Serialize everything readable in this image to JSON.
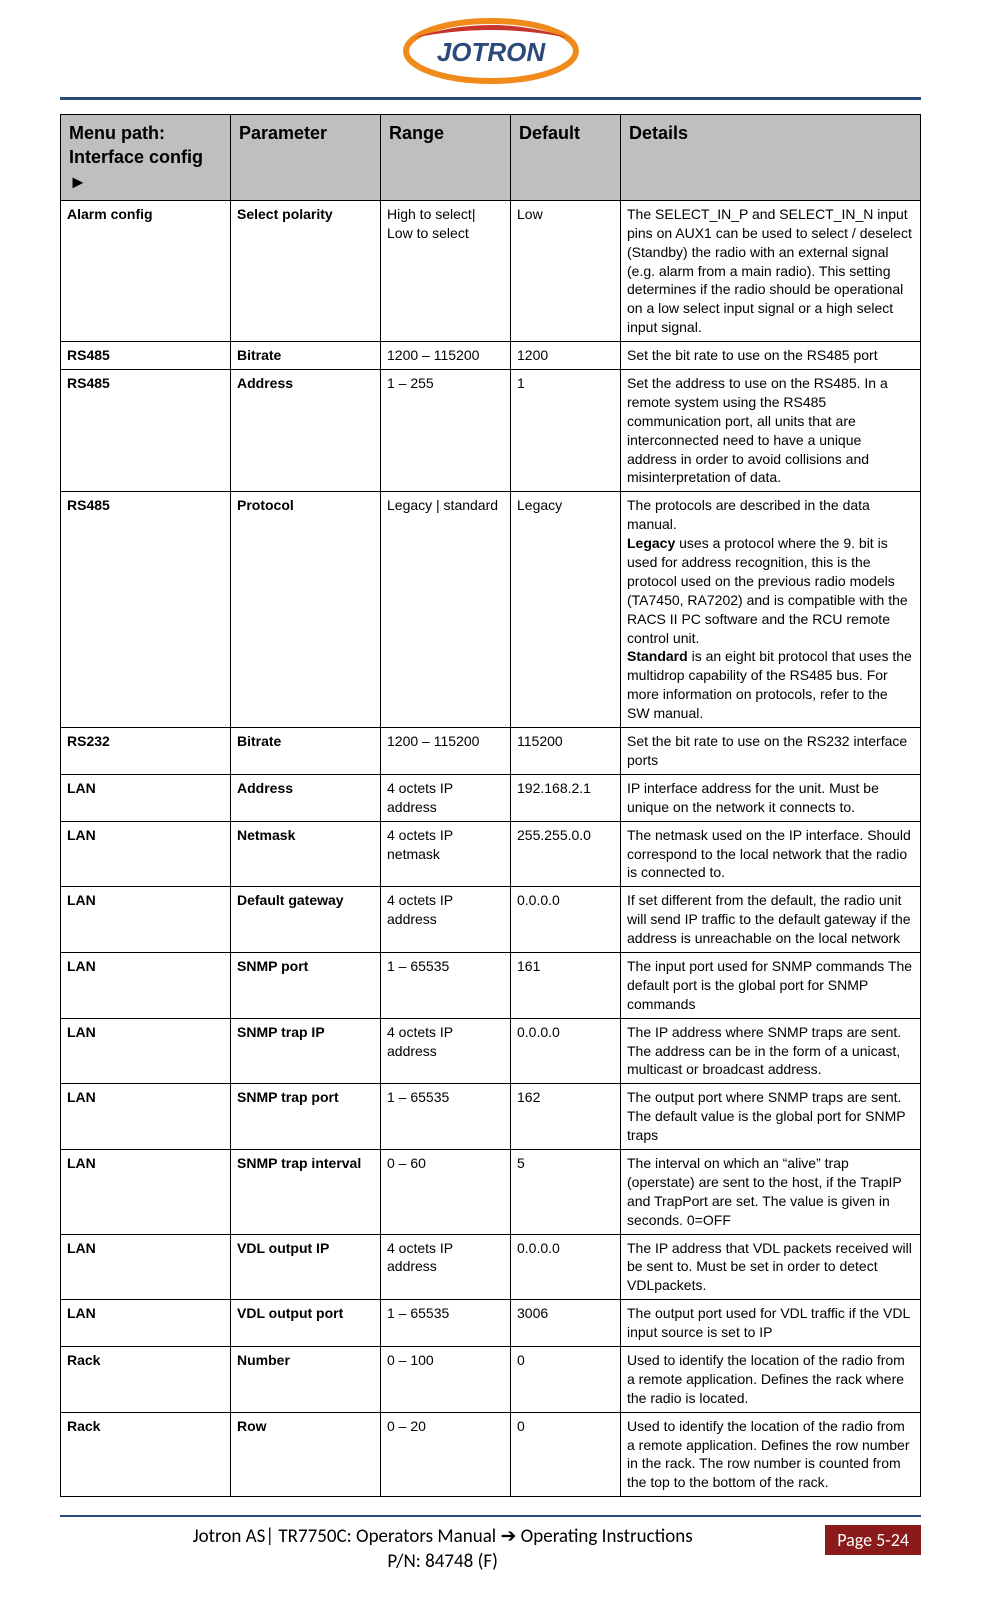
{
  "logo_text": "JOTRON",
  "logo_colors": {
    "ring": "#f08a1a",
    "top": "#c7342b",
    "text": "#2b4a7a"
  },
  "header": {
    "menu_path_line1": "Menu path:",
    "menu_path_line2": "Interface config ►",
    "parameter": "Parameter",
    "range": "Range",
    "default": "Default",
    "details": "Details"
  },
  "rows": [
    {
      "menu": "Alarm config",
      "param": "Select polarity",
      "range": "High to select| Low to select",
      "def": "Low",
      "details": "The SELECT_IN_P and SELECT_IN_N input pins on AUX1 can be used to select / deselect (Standby) the radio with an external signal (e.g. alarm from a main radio). This setting determines if the radio should be operational on a low select input signal or a high select input signal."
    },
    {
      "menu": "RS485",
      "param": "Bitrate",
      "range": "1200 – 115200",
      "def": "1200",
      "details": "Set the bit rate to use on the RS485 port"
    },
    {
      "menu": "RS485",
      "param": "Address",
      "range": "1 – 255",
      "def": "1",
      "details": "Set the address to use on the RS485. In a remote system using the RS485 communication port, all units that are interconnected need to have a unique address in order to avoid collisions and misinterpretation of data."
    },
    {
      "menu": "RS485",
      "param": "Protocol",
      "range": "Legacy | standard",
      "def": "Legacy",
      "details_html": "The protocols are described in the data manual.<br><b>Legacy</b> uses a protocol where the 9. bit is used for address recognition, this is the protocol used on the previous radio models (TA7450, RA7202) and is compatible with the RACS II PC software and the RCU remote control unit.<br><b>Standard</b> is an eight bit protocol that uses the multidrop capability of the RS485 bus. For more information on protocols, refer to the SW manual."
    },
    {
      "menu": "RS232",
      "param": "Bitrate",
      "range": "1200 – 115200",
      "def": "115200",
      "details": "Set the bit rate to use on the RS232 interface ports"
    },
    {
      "menu": "LAN",
      "param": "Address",
      "range": "4 octets IP address",
      "def": "192.168.2.1",
      "details": "IP interface address for the unit. Must be unique on the network it connects to."
    },
    {
      "menu": "LAN",
      "param": "Netmask",
      "range": "4 octets IP netmask",
      "def": "255.255.0.0",
      "details": "The netmask used on the IP interface. Should correspond to the local network that the radio is connected to."
    },
    {
      "menu": "LAN",
      "param": "Default gateway",
      "range": "4 octets IP address",
      "def": "0.0.0.0",
      "details": "If set different from the default, the radio unit will send IP traffic to the default gateway if the address is unreachable on the local network"
    },
    {
      "menu": "LAN",
      "param": "SNMP port",
      "range": "1 – 65535",
      "def": "161",
      "details": "The input port used for SNMP commands The default port is the global port for SNMP commands"
    },
    {
      "menu": "LAN",
      "param": "SNMP trap IP",
      "range": "4 octets IP address",
      "def": "0.0.0.0",
      "details": "The IP address where SNMP traps are sent. The address can be in the form of a unicast, multicast or broadcast address."
    },
    {
      "menu": "LAN",
      "param": "SNMP trap port",
      "range": "1 – 65535",
      "def": "162",
      "details": "The output port where SNMP traps are sent. The default value is the global port for SNMP traps"
    },
    {
      "menu": "LAN",
      "param": "SNMP trap interval",
      "range": "0 – 60",
      "def": "5",
      "details": "The interval on which an “alive” trap (operstate) are sent to the host, if the TrapIP and TrapPort are set. The value is given in seconds. 0=OFF"
    },
    {
      "menu": "LAN",
      "param": "VDL output IP",
      "range": "4 octets IP address",
      "def": "0.0.0.0",
      "details": "The IP address that VDL packets received will be sent to. Must be set in order to detect VDLpackets."
    },
    {
      "menu": "LAN",
      "param": "VDL output port",
      "range": "1 – 65535",
      "def": "3006",
      "details": "The output port used for VDL traffic if the VDL input source is set to IP"
    },
    {
      "menu": "Rack",
      "param": "Number",
      "range": "0 – 100",
      "def": "0",
      "details": "Used to identify the location of the radio from a remote application. Defines the rack where the radio is located."
    },
    {
      "menu": "Rack",
      "param": "Row",
      "range": "0 – 20",
      "def": "0",
      "details": "Used to identify the location of the radio from a remote application. Defines the row number in the rack. The row number is counted from the top to the bottom of the rack."
    }
  ],
  "footer": {
    "line1": "Jotron AS| TR7750C: Operators Manual ➔ Operating Instructions",
    "pn": "P/N: 84748 (F)",
    "page_label": "Page 5-24"
  }
}
